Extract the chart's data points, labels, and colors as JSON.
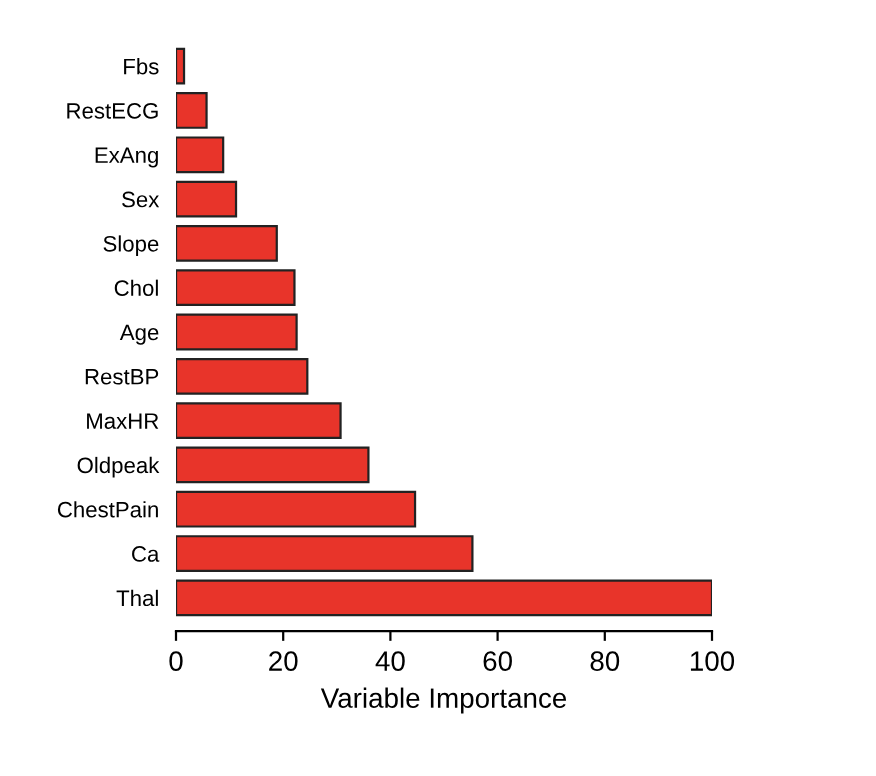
{
  "chart_data": {
    "type": "bar",
    "orientation": "horizontal",
    "xlabel": "Variable Importance",
    "categories": [
      "Fbs",
      "RestECG",
      "ExAng",
      "Sex",
      "Slope",
      "Chol",
      "Age",
      "RestBP",
      "MaxHR",
      "Oldpeak",
      "ChestPain",
      "Ca",
      "Thal"
    ],
    "values": [
      1.5,
      5.7,
      8.8,
      11.2,
      18.8,
      22.1,
      22.5,
      24.5,
      30.7,
      35.9,
      44.6,
      55.3,
      100
    ],
    "color": "#e8342a",
    "xlim": [
      0,
      100
    ],
    "xticks": [
      0,
      20,
      40,
      60,
      80,
      100
    ],
    "grid": false
  }
}
